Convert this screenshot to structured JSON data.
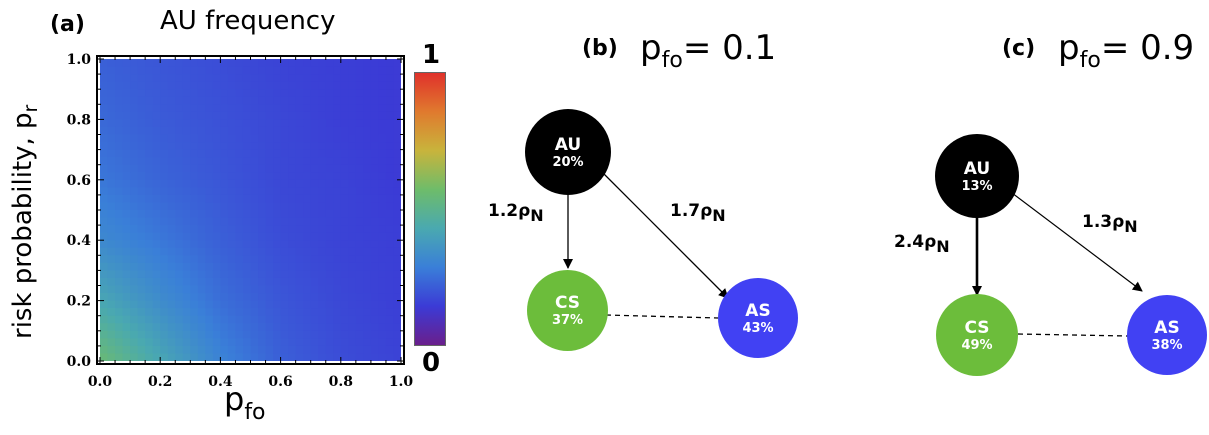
{
  "colors": {
    "au_node": "#000000",
    "cs_node": "#6cbd3b",
    "as_node": "#4141f3",
    "colormap": [
      "#6a1f8c",
      "#3b3bd6",
      "#3a7fd8",
      "#4aa9b0",
      "#6ebc6a",
      "#c8b43c",
      "#e07a2e",
      "#e0312b"
    ]
  },
  "panel_a": {
    "label": "(a)",
    "title": "AU frequency",
    "x_tick_labels": [
      "0.0",
      "0.2",
      "0.4",
      "0.6",
      "0.8",
      "1.0"
    ],
    "y_tick_labels": [
      "0.0",
      "0.2",
      "0.4",
      "0.6",
      "0.8",
      "1.0"
    ],
    "ylabel_main": "risk probability,  p",
    "ylabel_sub": "r",
    "xlabel_main": "p",
    "xlabel_sub": "fo",
    "colorbar_top": "1",
    "colorbar_bottom": "0"
  },
  "panel_b": {
    "label": "(b)",
    "title_main": "p",
    "title_sub": "fo",
    "title_value": "= 0.1",
    "nodes": {
      "au": {
        "name": "AU",
        "pct": "20%"
      },
      "cs": {
        "name": "CS",
        "pct": "37%"
      },
      "as": {
        "name": "AS",
        "pct": "43%"
      }
    },
    "rates": {
      "au_cs": {
        "coef": "1.2",
        "symbol": "ρ",
        "sub": "N"
      },
      "au_as": {
        "coef": "1.7",
        "symbol": "ρ",
        "sub": "N"
      }
    }
  },
  "panel_c": {
    "label": "(c)",
    "title_main": "p",
    "title_sub": "fo",
    "title_value": "= 0.9",
    "nodes": {
      "au": {
        "name": "AU",
        "pct": "13%"
      },
      "cs": {
        "name": "CS",
        "pct": "49%"
      },
      "as": {
        "name": "AS",
        "pct": "38%"
      }
    },
    "rates": {
      "au_cs": {
        "coef": "2.4",
        "symbol": "ρ",
        "sub": "N"
      },
      "au_as": {
        "coef": "1.3",
        "symbol": "ρ",
        "sub": "N"
      }
    }
  },
  "chart_data": {
    "type": "heatmap",
    "title": "AU frequency",
    "xlabel": "p_fo",
    "ylabel": "risk probability, p_r",
    "xlim": [
      0,
      1
    ],
    "ylim": [
      0,
      1
    ],
    "colorbar_range": [
      0,
      1
    ],
    "grid": false,
    "x": [
      0.0,
      0.2,
      0.4,
      0.6,
      0.8,
      1.0
    ],
    "y": [
      0.0,
      0.2,
      0.4,
      0.6,
      0.8,
      1.0
    ],
    "z": [
      [
        0.55,
        0.42,
        0.3,
        0.22,
        0.18,
        0.16
      ],
      [
        0.42,
        0.33,
        0.25,
        0.2,
        0.17,
        0.15
      ],
      [
        0.32,
        0.27,
        0.22,
        0.18,
        0.16,
        0.15
      ],
      [
        0.27,
        0.23,
        0.2,
        0.17,
        0.16,
        0.14
      ],
      [
        0.24,
        0.21,
        0.19,
        0.17,
        0.15,
        0.14
      ],
      [
        0.22,
        0.2,
        0.18,
        0.16,
        0.15,
        0.14
      ]
    ],
    "z_note_rows": "z rows indexed by y (bottom to top), columns by x"
  }
}
